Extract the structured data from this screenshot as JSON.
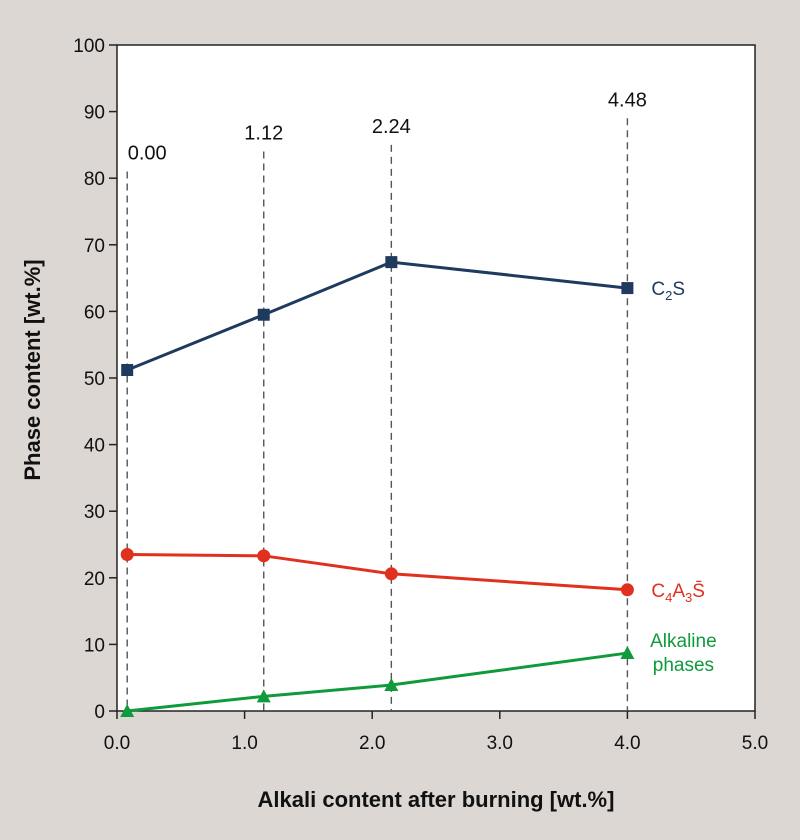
{
  "chart_data": {
    "type": "line",
    "xlabel": "Alkali content after burning [wt.%]",
    "ylabel": "Phase content [wt.%]",
    "xlim": [
      0.0,
      5.0
    ],
    "ylim": [
      0,
      100
    ],
    "x_ticks": [
      "0.0",
      "1.0",
      "2.0",
      "3.0",
      "4.0",
      "5.0"
    ],
    "y_ticks": [
      "0",
      "10",
      "20",
      "30",
      "40",
      "50",
      "60",
      "70",
      "80",
      "90",
      "100"
    ],
    "reference_lines": [
      {
        "x": 0.08,
        "label": "0.00",
        "top": 81
      },
      {
        "x": 1.15,
        "label": "1.12",
        "top": 84
      },
      {
        "x": 2.15,
        "label": "2.24",
        "top": 85
      },
      {
        "x": 4.0,
        "label": "4.48",
        "top": 89
      }
    ],
    "series": [
      {
        "name": "C2S",
        "label_parts": [
          {
            "t": "C",
            "sub": false
          },
          {
            "t": "2",
            "sub": true
          },
          {
            "t": "S",
            "sub": false
          }
        ],
        "color": "#1f3a5f",
        "marker": "square",
        "x": [
          0.08,
          1.15,
          2.15,
          4.0
        ],
        "values": [
          51.2,
          59.5,
          67.4,
          63.5
        ]
      },
      {
        "name": "C4A3S̄",
        "label_parts": [
          {
            "t": "C",
            "sub": false
          },
          {
            "t": "4",
            "sub": true
          },
          {
            "t": "A",
            "sub": false
          },
          {
            "t": "3",
            "sub": true
          },
          {
            "t": "S̄",
            "sub": false
          }
        ],
        "color": "#e0301e",
        "marker": "circle",
        "x": [
          0.08,
          1.15,
          2.15,
          4.0
        ],
        "values": [
          23.5,
          23.3,
          20.6,
          18.2
        ]
      },
      {
        "name": "Alkaline phases",
        "label_lines": [
          "Alkaline",
          "phases"
        ],
        "color": "#0f9a3c",
        "marker": "triangle",
        "x": [
          0.08,
          1.15,
          2.15,
          4.0
        ],
        "values": [
          0.0,
          2.2,
          3.9,
          8.7
        ]
      }
    ]
  }
}
